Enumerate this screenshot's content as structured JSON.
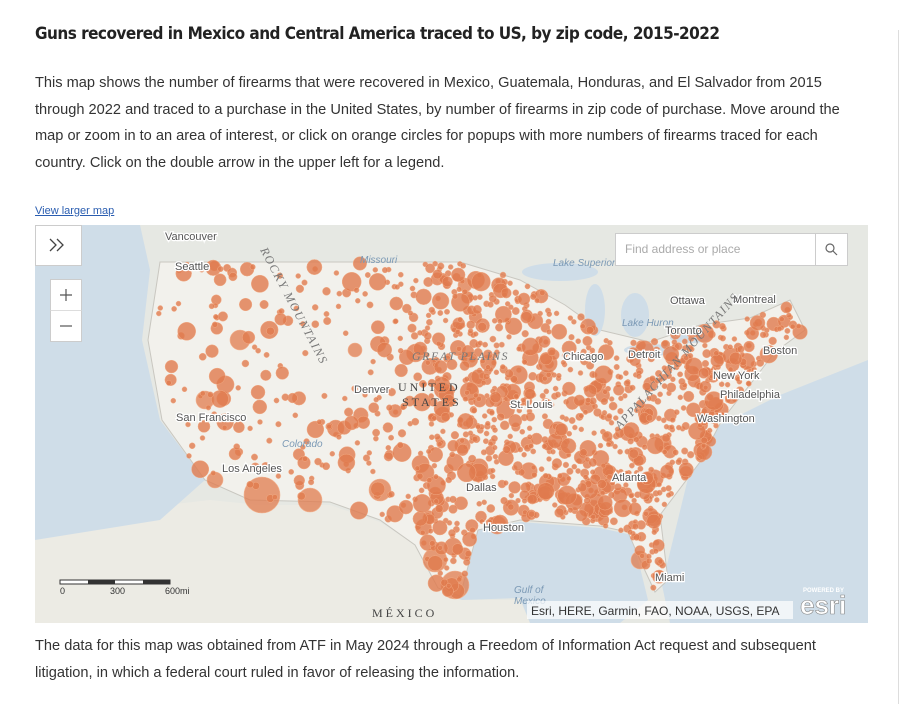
{
  "header": {
    "title": "Guns recovered in Mexico and Central America traced to US, by zip code, 2015-2022",
    "description": "This map shows the number of firearms that were recovered in Mexico, Guatemala, Honduras, and El Salvador from 2015 through 2022 and traced to a purchase in the United States, by number of firearms in zip code of purchase. Move around the map or zoom in to an area of interest, or click on orange circles for popups with more numbers of firearms traced for each country. Click on the double arrow in the upper left for a legend.",
    "link": "View larger map"
  },
  "map": {
    "search_placeholder": "Find address or place",
    "labels": [
      "Vancouver",
      "Seattle",
      "Missouri",
      "Lake Superior",
      "Ottawa",
      "Montreal",
      "Lake Huron",
      "Toronto",
      "Boston",
      "Detroit",
      "Chicago",
      "New York",
      "Philadelphia",
      "Washington",
      "GREAT PLAINS",
      "UNITED",
      "STATES",
      "Denver",
      "St. Louis",
      "San Francisco",
      "Colorado",
      "Los Angeles",
      "Dallas",
      "Houston",
      "Atlanta",
      "Miami",
      "Gulf of",
      "Mexico",
      "MÉXICO",
      "ROCKY MOUNTAINS",
      "APPALACHIAN MOUNTAINS"
    ],
    "scale": [
      "0",
      "300",
      "600mi"
    ],
    "attribution": "Esri, HERE, Garmin, FAO, NOAA, USGS, EPA",
    "logo": {
      "powered_by": "POWERED BY",
      "brand": "esri"
    }
  },
  "footer": {
    "note": "The data for this map was obtained from ATF in May 2024 through a Freedom of Information Act request and subsequent litigation, in which a federal court ruled in favor of releasing the information."
  }
}
